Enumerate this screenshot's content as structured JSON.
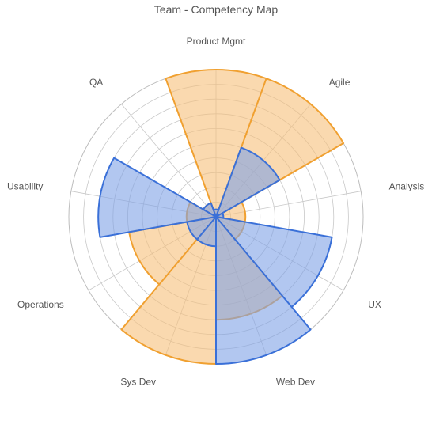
{
  "chart_data": {
    "type": "radar",
    "title": "Team - Competency Map",
    "categories": [
      "Product Mgmt",
      "Agile",
      "Analysis",
      "UX",
      "Web Dev",
      "Sys Dev",
      "Operations",
      "Usability",
      "QA"
    ],
    "rmax": 10,
    "rings": 10,
    "grid": true,
    "series": [
      {
        "color": "#f0a030",
        "fill": "#f7c07a",
        "values": [
          10,
          10,
          2,
          2,
          7,
          10,
          6,
          2,
          1
        ]
      },
      {
        "color": "#3a70d8",
        "fill": "#7fa2e6",
        "values": [
          0.5,
          5,
          0.5,
          8,
          10,
          2,
          2,
          8,
          1
        ]
      }
    ]
  }
}
